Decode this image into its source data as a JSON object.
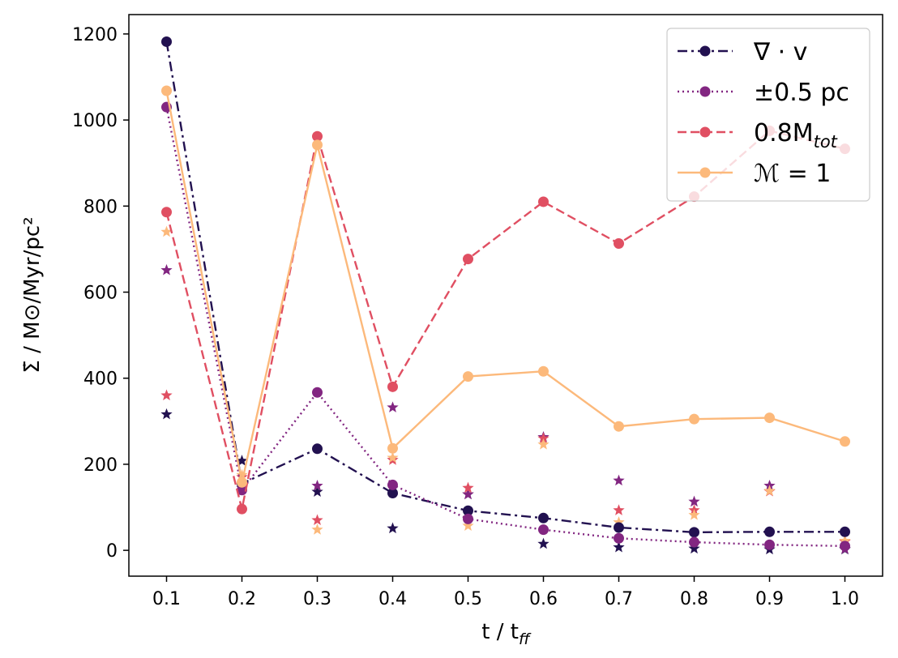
{
  "chart_data": {
    "type": "line",
    "x": [
      0.1,
      0.2,
      0.3,
      0.4,
      0.5,
      0.6,
      0.7,
      0.8,
      0.9,
      1.0
    ],
    "xticks": [
      "0.1",
      "0.2",
      "0.3",
      "0.4",
      "0.5",
      "0.6",
      "0.7",
      "0.8",
      "0.9",
      "1.0"
    ],
    "yticks": [
      0,
      200,
      400,
      600,
      800,
      1000,
      1200
    ],
    "xlim": [
      0.05,
      1.05
    ],
    "ylim": [
      -60,
      1245
    ],
    "xlabel": {
      "main": "t / t",
      "sub": "ff"
    },
    "ylabel": "Σ̇ / M⊙/Myr/pc²",
    "grid": false,
    "legend_position": "top-right",
    "series": [
      {
        "name": "∇ · v",
        "color": "#221150",
        "line_style": "dashdot",
        "values": [
          1182,
          155,
          236,
          133,
          92,
          75,
          53,
          42,
          43,
          43
        ],
        "star_values": [
          316,
          208,
          136,
          51,
          130,
          15,
          7,
          4,
          2,
          2
        ]
      },
      {
        "name": "±0.5 pc",
        "color": "#822681",
        "line_style": "dotted",
        "values": [
          1030,
          140,
          367,
          152,
          73,
          48,
          28,
          19,
          13,
          10
        ],
        "star_values": [
          651,
          145,
          150,
          332,
          130,
          263,
          162,
          113,
          150,
          3
        ]
      },
      {
        "name": "0.8M",
        "name_sub": "tot",
        "color": "#e04f62",
        "line_style": "dashed",
        "values": [
          786,
          96,
          962,
          380,
          677,
          810,
          713,
          822,
          975,
          933
        ],
        "star_values": [
          360,
          170,
          70,
          210,
          145,
          260,
          93,
          93,
          137,
          20
        ]
      },
      {
        "name": "ℳ = 1",
        "color": "#fcb97b",
        "line_style": "solid",
        "values": [
          1068,
          158,
          942,
          237,
          404,
          416,
          288,
          305,
          308,
          253
        ],
        "star_values": [
          740,
          175,
          48,
          215,
          57,
          246,
          65,
          82,
          138,
          22
        ]
      }
    ]
  }
}
